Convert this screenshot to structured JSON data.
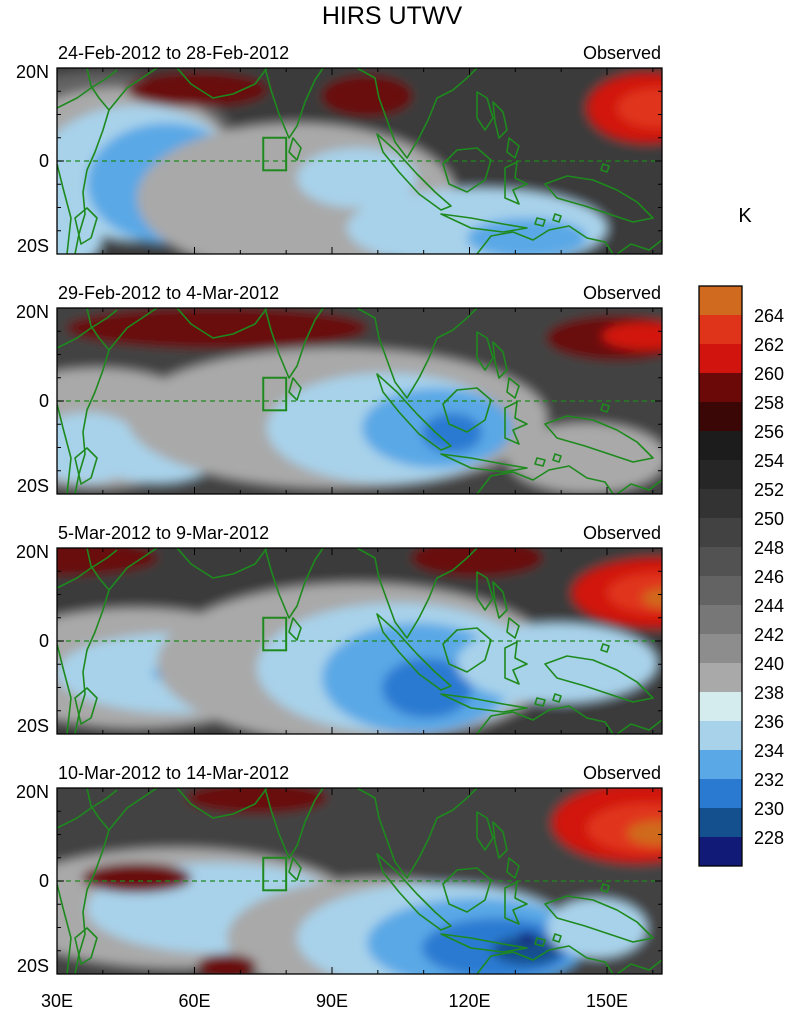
{
  "title": "HIRS UTWV",
  "colorbar": {
    "unit": "K",
    "levels": [
      "264",
      "262",
      "260",
      "258",
      "256",
      "254",
      "252",
      "250",
      "248",
      "246",
      "244",
      "242",
      "240",
      "238",
      "236",
      "234",
      "232",
      "230",
      "228"
    ],
    "colors": [
      "#cf6a1e",
      "#e0341a",
      "#d2140f",
      "#6b0808",
      "#3a0606",
      "#1c1c1c",
      "#262626",
      "#333333",
      "#424242",
      "#525252",
      "#636363",
      "#777777",
      "#8d8d8d",
      "#a9a9a9",
      "#d4ecee",
      "#a8d2ea",
      "#5aa8e6",
      "#2a7ad2",
      "#14508e",
      "#121a78"
    ]
  },
  "panels": [
    {
      "date_range": "24-Feb-2012 to 28-Feb-2012",
      "label": "Observed"
    },
    {
      "date_range": "29-Feb-2012 to 4-Mar-2012",
      "label": "Observed"
    },
    {
      "date_range": "5-Mar-2012 to 9-Mar-2012",
      "label": "Observed"
    },
    {
      "date_range": "10-Mar-2012 to 14-Mar-2012",
      "label": "Observed"
    }
  ],
  "axes": {
    "lat_labels": [
      "20N",
      "0",
      "20S"
    ],
    "lon_labels": [
      "30E",
      "60E",
      "90E",
      "120E",
      "150E"
    ]
  },
  "map": {
    "coastline_color": "#1e8a1e",
    "box_region": {
      "lon": [
        75,
        80
      ],
      "lat": [
        -2,
        5
      ]
    }
  }
}
